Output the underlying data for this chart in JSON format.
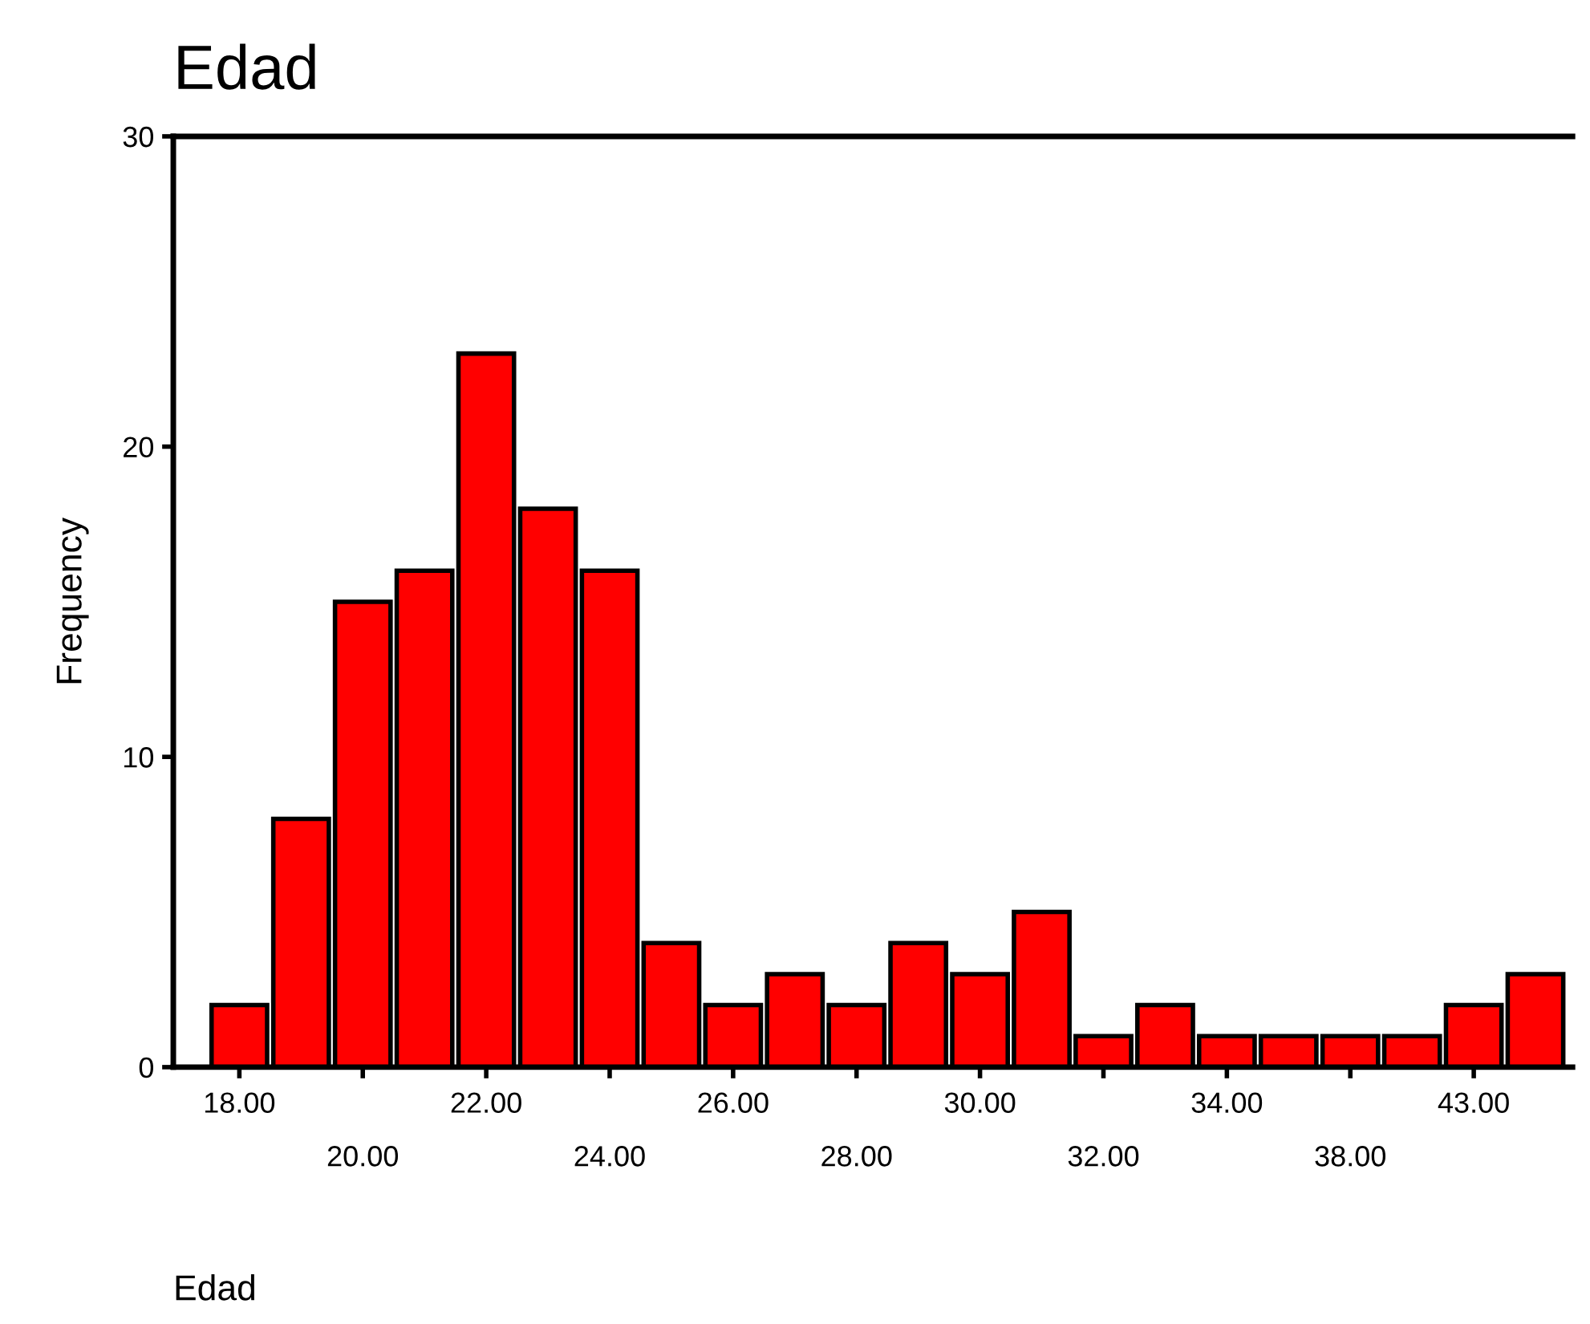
{
  "chart_data": {
    "type": "bar",
    "title": "Edad",
    "xlabel": "Edad",
    "ylabel": "Frequency",
    "categories": [
      "18.00",
      null,
      "20.00",
      null,
      "22.00",
      null,
      "24.00",
      null,
      "26.00",
      null,
      "28.00",
      null,
      "30.00",
      null,
      "32.00",
      null,
      "34.00",
      null,
      "38.00",
      null,
      "43.00",
      null
    ],
    "values": [
      2,
      8,
      15,
      16,
      23,
      18,
      16,
      4,
      2,
      3,
      2,
      4,
      3,
      5,
      1,
      2,
      1,
      1,
      1,
      1,
      2,
      3
    ],
    "color": "#ff0000",
    "ylim": [
      0,
      30
    ],
    "yticks": [
      0,
      10,
      20,
      30
    ],
    "grid": false,
    "legend": false
  }
}
